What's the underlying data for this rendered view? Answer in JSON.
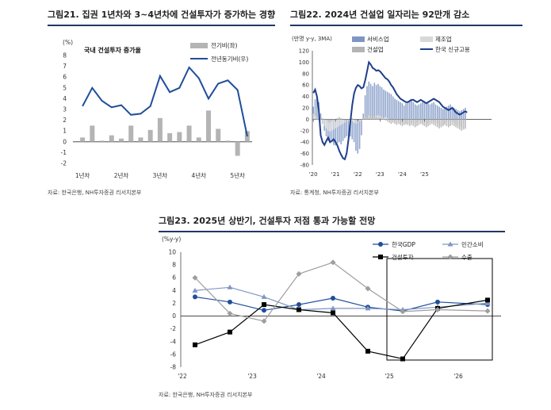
{
  "colors": {
    "navy": "#1f4e9a",
    "gray": "#b4b4b4",
    "lightgray": "#d8d8d8",
    "title_rule": "#1f3864",
    "black": "#000000",
    "silver": "#9e9e9e",
    "steel": "#7f96c4"
  },
  "panels": {
    "p21": {
      "title": "그림21. 집권 1년차와 3~4년차에 건설투자가 증가하는 경향",
      "source": "자료: 한국은행, NH투자증권 리서치본부"
    },
    "p22": {
      "title": "그림22. 2024년 건설업 일자리는 92만개 감소",
      "source": "자료: 통계청, NH투자증권 리서치본부"
    },
    "p23": {
      "title": "그림23. 2025년 상반기, 건설투자 저점 통과 가능할 전망",
      "source": "자료: 한국은행, NH투자증권 리서치본부"
    }
  },
  "chart_data": [
    {
      "id": "fig21",
      "type": "bar",
      "ylabel": "(%)",
      "annotation": "국내 건설투자 증가율",
      "ylim": [
        -2,
        8
      ],
      "yticks": [
        "-2",
        "-1",
        "0",
        "1",
        "2",
        "3",
        "4",
        "5",
        "6",
        "7",
        "8"
      ],
      "xtick_labels": [
        "1년차",
        "2년차",
        "3년차",
        "4년차",
        "5년차"
      ],
      "legend_position": "top-right",
      "series": [
        {
          "name": "전기비(좌)",
          "kind": "bar",
          "values": [
            0.4,
            1.5,
            0.1,
            0.6,
            0.3,
            1.5,
            0.4,
            1.1,
            2.2,
            0.8,
            0.9,
            1.5,
            0.4,
            2.9,
            1.2,
            0.1,
            -1.3,
            1.0
          ]
        },
        {
          "name": "전년동기비(우)",
          "kind": "line",
          "values": [
            3.3,
            5.0,
            3.8,
            3.2,
            3.4,
            2.5,
            2.6,
            3.3,
            6.1,
            4.6,
            5.0,
            6.9,
            5.9,
            4.0,
            5.4,
            5.7,
            4.8,
            0.5
          ]
        }
      ]
    },
    {
      "id": "fig22",
      "type": "bar",
      "ylabel": "(만명 y-y, 3MA)",
      "ylim": [
        -80,
        120
      ],
      "yticks": [
        "-80",
        "-60",
        "-40",
        "-20",
        "0",
        "20",
        "40",
        "60",
        "80",
        "100",
        "120"
      ],
      "xtick_labels": [
        "'20",
        "'21",
        "'22",
        "'23",
        "'24",
        "'25"
      ],
      "legend_position": "top",
      "series": [
        {
          "name": "서비스업",
          "kind": "bar",
          "values": [
            22,
            35,
            40,
            30,
            10,
            -8,
            -20,
            -30,
            -38,
            -42,
            -40,
            -45,
            -46,
            -42,
            -40,
            -44,
            -38,
            -33,
            -30,
            -28,
            -30,
            -35,
            -40,
            -55,
            -60,
            -52,
            -28,
            10,
            42,
            58,
            66,
            62,
            58,
            64,
            60,
            62,
            58,
            56,
            52,
            50,
            48,
            46,
            44,
            40,
            36,
            34,
            32,
            30,
            28,
            24,
            28,
            30,
            32,
            34,
            30,
            26,
            24,
            26,
            28,
            30,
            32,
            30,
            28,
            26,
            28,
            30,
            26,
            24,
            22,
            20,
            18,
            20,
            22,
            24,
            26,
            22,
            20,
            18,
            16,
            14,
            16,
            18,
            20
          ]
        },
        {
          "name": "제조업",
          "kind": "bar",
          "values": [
            10,
            6,
            4,
            2,
            -4,
            -8,
            -12,
            -16,
            -20,
            -22,
            -20,
            -18,
            -16,
            -14,
            -12,
            -10,
            -8,
            -6,
            -4,
            -2,
            -2,
            -4,
            -6,
            -8,
            -6,
            -4,
            -2,
            0,
            2,
            4,
            6,
            4,
            2,
            4,
            6,
            8,
            6,
            4,
            2,
            4,
            2,
            0,
            -2,
            -4,
            -2,
            -4,
            -6,
            -8,
            -6,
            -8,
            -10,
            -8,
            -6,
            -4,
            -6,
            -8,
            -6,
            -4,
            -2,
            -4,
            -6,
            -8,
            -6,
            -4,
            -2,
            -4,
            -6,
            -8,
            -10,
            -12,
            -10,
            -8,
            -6,
            -4,
            -2,
            -4,
            -6,
            -8,
            -10,
            -12,
            -14,
            -16,
            -18,
            -20
          ]
        },
        {
          "name": "건설업",
          "kind": "bar",
          "values": [
            0,
            2,
            4,
            6,
            4,
            2,
            0,
            -2,
            -4,
            -6,
            -4,
            -2,
            0,
            2,
            4,
            2,
            0,
            -2,
            -4,
            -2,
            0,
            2,
            0,
            -2,
            -4,
            -2,
            0,
            2,
            4,
            6,
            4,
            6,
            8,
            6,
            4,
            2,
            4,
            2,
            0,
            -2,
            -4,
            -6,
            -8,
            -6,
            -8,
            -10,
            -8,
            -10,
            -12,
            -10,
            -8,
            -10,
            -12,
            -10,
            -12,
            -14,
            -12,
            -10,
            -8,
            -10,
            -12,
            -14,
            -12,
            -10,
            -8,
            -10,
            -12,
            -14,
            -16,
            -14,
            -12,
            -10,
            -12,
            -14,
            -12,
            -10,
            -12,
            -14,
            -16,
            -18,
            -20,
            -18,
            -16,
            -14
          ]
        },
        {
          "name": "한국 신규고용",
          "kind": "line",
          "values": [
            46,
            52,
            40,
            15,
            -28,
            -40,
            -45,
            -38,
            -32,
            -40,
            -38,
            -35,
            -40,
            -46,
            -55,
            -62,
            -68,
            -70,
            -60,
            -35,
            -5,
            25,
            45,
            55,
            60,
            58,
            54,
            56,
            68,
            84,
            100,
            96,
            90,
            88,
            85,
            86,
            84,
            80,
            76,
            72,
            70,
            66,
            60,
            56,
            50,
            44,
            40,
            36,
            34,
            32,
            30,
            30,
            32,
            34,
            34,
            32,
            30,
            32,
            34,
            32,
            30,
            28,
            30,
            32,
            34,
            36,
            34,
            32,
            30,
            26,
            22,
            20,
            18,
            16,
            18,
            20,
            16,
            12,
            10,
            8,
            10,
            12,
            14,
            12
          ]
        }
      ]
    },
    {
      "id": "fig23",
      "type": "line",
      "ylabel": "(%y-y)",
      "ylim": [
        -8,
        10
      ],
      "yticks": [
        "-8",
        "-6",
        "-4",
        "-2",
        "0",
        "2",
        "4",
        "6",
        "8",
        "10"
      ],
      "xtick_labels": [
        "'22",
        "'23",
        "'24",
        "'25",
        "'26"
      ],
      "legend_position": "top-right",
      "series": [
        {
          "name": "한국GDP",
          "values": [
            3.0,
            2.2,
            0.9,
            1.8,
            2.8,
            1.4,
            0.8,
            2.2,
            1.8
          ]
        },
        {
          "name": "민간소비",
          "values": [
            4.0,
            4.5,
            3.0,
            1.0,
            1.2,
            1.2,
            1.0,
            1.4,
            2.0
          ]
        },
        {
          "name": "건설투자",
          "values": [
            -4.5,
            -2.5,
            1.8,
            1.0,
            0.5,
            -5.5,
            -6.7,
            1.2,
            2.5
          ]
        },
        {
          "name": "수출",
          "values": [
            6.0,
            0.4,
            -0.8,
            6.6,
            8.4,
            4.3,
            0.7,
            1.0,
            0.8
          ]
        }
      ]
    }
  ]
}
